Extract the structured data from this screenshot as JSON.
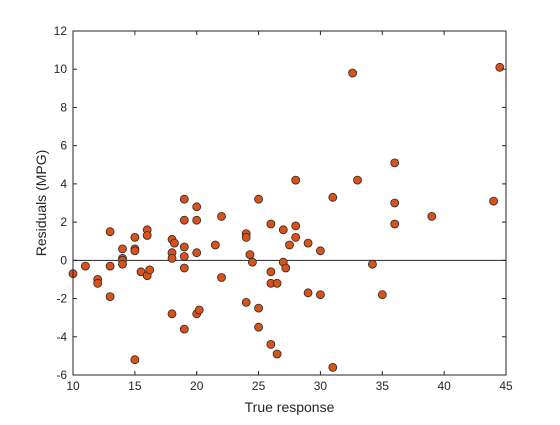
{
  "figure": {
    "background": "#ffffff",
    "axes_color": "#262626"
  },
  "chart_data": {
    "type": "scatter",
    "title": "",
    "xlabel": "True response",
    "ylabel": "Residuals (MPG)",
    "xlim": [
      10,
      45
    ],
    "ylim": [
      -6,
      12
    ],
    "xticks": [
      10,
      15,
      20,
      25,
      30,
      35,
      40,
      45
    ],
    "yticks": [
      -6,
      -4,
      -2,
      0,
      2,
      4,
      6,
      8,
      10,
      12
    ],
    "grid": false,
    "legend": "none",
    "reference_line": {
      "y": 0,
      "color": "#262626"
    },
    "marker": {
      "shape": "circle",
      "fill": "#d95319",
      "edge": "#262626"
    },
    "points": [
      [
        10,
        -0.7
      ],
      [
        11,
        -0.3
      ],
      [
        12,
        -1.0
      ],
      [
        12,
        -1.2
      ],
      [
        13,
        1.5
      ],
      [
        13,
        -0.3
      ],
      [
        13,
        -1.9
      ],
      [
        14,
        0.6
      ],
      [
        14,
        0.1
      ],
      [
        14,
        0.0
      ],
      [
        14,
        -0.2
      ],
      [
        15,
        1.2
      ],
      [
        15,
        0.6
      ],
      [
        15,
        0.5
      ],
      [
        15,
        -5.2
      ],
      [
        15.5,
        -0.6
      ],
      [
        16,
        1.6
      ],
      [
        16,
        1.3
      ],
      [
        16,
        -0.8
      ],
      [
        16.2,
        -0.5
      ],
      [
        18,
        1.1
      ],
      [
        18,
        0.4
      ],
      [
        18,
        0.1
      ],
      [
        18,
        -2.8
      ],
      [
        18.2,
        0.9
      ],
      [
        19,
        3.2
      ],
      [
        19,
        2.1
      ],
      [
        19,
        0.7
      ],
      [
        19,
        0.2
      ],
      [
        19,
        -0.4
      ],
      [
        19,
        -3.6
      ],
      [
        20,
        2.8
      ],
      [
        20,
        2.1
      ],
      [
        20,
        0.4
      ],
      [
        20,
        -2.8
      ],
      [
        20.2,
        -2.6
      ],
      [
        21.5,
        0.8
      ],
      [
        22,
        2.3
      ],
      [
        22,
        -0.9
      ],
      [
        24,
        1.4
      ],
      [
        24,
        1.2
      ],
      [
        24,
        -2.2
      ],
      [
        24.5,
        -0.1
      ],
      [
        24.3,
        0.3
      ],
      [
        25,
        3.2
      ],
      [
        25,
        -2.5
      ],
      [
        25,
        -3.5
      ],
      [
        26,
        1.9
      ],
      [
        26,
        -0.6
      ],
      [
        26,
        -1.2
      ],
      [
        26,
        -4.4
      ],
      [
        26.5,
        -4.9
      ],
      [
        26.5,
        -1.2
      ],
      [
        27,
        1.6
      ],
      [
        27,
        -0.1
      ],
      [
        27.2,
        -0.4
      ],
      [
        27.5,
        0.8
      ],
      [
        28,
        4.2
      ],
      [
        28,
        1.8
      ],
      [
        28,
        1.2
      ],
      [
        29,
        0.9
      ],
      [
        29,
        -1.7
      ],
      [
        30,
        0.5
      ],
      [
        30,
        -1.8
      ],
      [
        31,
        3.3
      ],
      [
        31,
        -5.6
      ],
      [
        32.6,
        9.8
      ],
      [
        33,
        4.2
      ],
      [
        34.2,
        -0.2
      ],
      [
        35,
        -1.8
      ],
      [
        36,
        5.1
      ],
      [
        36,
        3.0
      ],
      [
        36,
        1.9
      ],
      [
        39,
        2.3
      ],
      [
        44,
        3.1
      ],
      [
        44.5,
        10.1
      ]
    ]
  }
}
